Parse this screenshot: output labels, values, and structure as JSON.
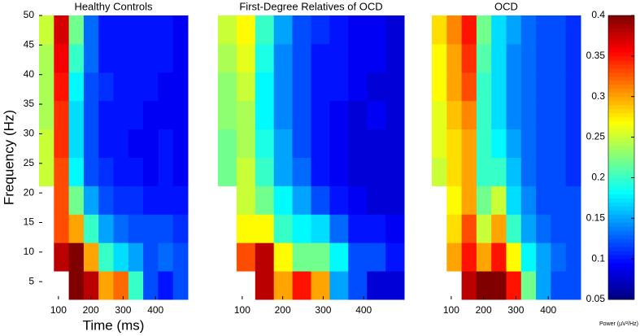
{
  "chart_data": [
    {
      "type": "heatmap",
      "title": "Healthy Controls",
      "xlabel": "Time (ms)",
      "ylabel": "Frequency (Hz)",
      "x": [
        63,
        109,
        155,
        201,
        247,
        293,
        339,
        385,
        431,
        477
      ],
      "y": [
        4.4,
        9.2,
        14,
        18.8,
        23.6,
        28.4,
        33.2,
        38,
        42.8,
        47.6
      ],
      "values": [
        [
          null,
          null,
          0.4,
          0.38,
          0.3,
          0.32,
          0.2,
          0.12,
          0.1,
          0.12
        ],
        [
          null,
          0.38,
          0.4,
          0.3,
          0.2,
          0.17,
          0.15,
          0.12,
          0.13,
          0.12
        ],
        [
          null,
          0.33,
          0.3,
          0.2,
          0.15,
          0.13,
          0.12,
          0.12,
          0.12,
          0.11
        ],
        [
          null,
          0.33,
          0.22,
          0.15,
          0.12,
          0.11,
          0.11,
          0.1,
          0.1,
          0.1
        ],
        [
          0.25,
          0.33,
          0.18,
          0.12,
          0.11,
          0.1,
          0.1,
          0.09,
          0.1,
          0.09
        ],
        [
          0.25,
          0.34,
          0.17,
          0.12,
          0.1,
          0.1,
          0.09,
          0.09,
          0.1,
          0.09
        ],
        [
          0.24,
          0.34,
          0.17,
          0.12,
          0.1,
          0.1,
          0.1,
          0.09,
          0.09,
          0.09
        ],
        [
          0.24,
          0.35,
          0.18,
          0.12,
          0.11,
          0.1,
          0.1,
          0.1,
          0.09,
          0.09
        ],
        [
          0.24,
          0.36,
          0.2,
          0.13,
          0.1,
          0.1,
          0.1,
          0.1,
          0.1,
          0.09
        ],
        [
          0.25,
          0.37,
          0.22,
          0.13,
          0.1,
          0.1,
          0.1,
          0.1,
          0.1,
          0.09
        ]
      ],
      "xlim": [
        40,
        500
      ],
      "xticks": [
        100,
        200,
        300,
        400
      ],
      "ylim": [
        2,
        50
      ],
      "yticks": [
        5,
        10,
        15,
        20,
        25,
        30,
        35,
        40,
        45,
        50
      ]
    },
    {
      "type": "heatmap",
      "title": "First-Degree Relatives of OCD",
      "x": [
        63,
        109,
        155,
        201,
        247,
        293,
        339,
        385,
        431,
        477
      ],
      "y": [
        4.4,
        9.2,
        14,
        18.8,
        23.6,
        28.4,
        33.2,
        38,
        42.8,
        47.6
      ],
      "values": [
        [
          null,
          null,
          0.38,
          0.3,
          0.35,
          0.3,
          0.15,
          0.12,
          0.08,
          0.08
        ],
        [
          null,
          0.33,
          0.38,
          0.27,
          0.22,
          0.22,
          0.18,
          0.12,
          0.12,
          0.1
        ],
        [
          null,
          0.27,
          0.27,
          0.2,
          0.18,
          0.17,
          0.13,
          0.1,
          0.1,
          0.09
        ],
        [
          null,
          0.25,
          0.22,
          0.18,
          0.15,
          0.12,
          0.1,
          0.09,
          0.08,
          0.08
        ],
        [
          0.22,
          0.25,
          0.2,
          0.15,
          0.13,
          0.1,
          0.09,
          0.08,
          0.08,
          0.08
        ],
        [
          0.22,
          0.24,
          0.19,
          0.15,
          0.12,
          0.1,
          0.09,
          0.08,
          0.08,
          0.08
        ],
        [
          0.23,
          0.24,
          0.18,
          0.14,
          0.12,
          0.1,
          0.09,
          0.08,
          0.09,
          0.08
        ],
        [
          0.23,
          0.25,
          0.18,
          0.14,
          0.12,
          0.1,
          0.1,
          0.09,
          0.08,
          0.08
        ],
        [
          0.24,
          0.26,
          0.19,
          0.14,
          0.12,
          0.1,
          0.1,
          0.09,
          0.09,
          0.08
        ],
        [
          0.25,
          0.27,
          0.2,
          0.15,
          0.12,
          0.11,
          0.1,
          0.09,
          0.09,
          0.08
        ]
      ],
      "xlim": [
        40,
        500
      ],
      "xticks": [
        100,
        200,
        300,
        400
      ],
      "ylim": [
        2,
        50
      ]
    },
    {
      "type": "heatmap",
      "title": "OCD",
      "x": [
        63,
        109,
        155,
        201,
        247,
        293,
        339,
        385,
        431,
        477
      ],
      "y": [
        4.4,
        9.2,
        14,
        18.8,
        23.6,
        28.4,
        33.2,
        38,
        42.8,
        47.6
      ],
      "values": [
        [
          null,
          null,
          0.38,
          0.4,
          0.4,
          0.35,
          0.22,
          0.15,
          0.12,
          0.12
        ],
        [
          null,
          0.3,
          0.35,
          0.3,
          0.35,
          0.27,
          0.18,
          0.15,
          0.13,
          0.12
        ],
        [
          null,
          0.28,
          0.33,
          0.25,
          0.3,
          0.2,
          0.15,
          0.13,
          0.12,
          0.12
        ],
        [
          null,
          0.27,
          0.3,
          0.22,
          0.25,
          0.17,
          0.14,
          0.12,
          0.12,
          0.12
        ],
        [
          0.25,
          0.28,
          0.3,
          0.2,
          0.2,
          0.16,
          0.13,
          0.12,
          0.12,
          0.11
        ],
        [
          0.26,
          0.28,
          0.3,
          0.2,
          0.18,
          0.15,
          0.13,
          0.12,
          0.12,
          0.11
        ],
        [
          0.26,
          0.29,
          0.31,
          0.2,
          0.17,
          0.14,
          0.13,
          0.12,
          0.12,
          0.11
        ],
        [
          0.27,
          0.3,
          0.33,
          0.2,
          0.17,
          0.14,
          0.13,
          0.12,
          0.12,
          0.11
        ],
        [
          0.27,
          0.3,
          0.34,
          0.21,
          0.17,
          0.14,
          0.13,
          0.12,
          0.12,
          0.11
        ],
        [
          0.28,
          0.31,
          0.35,
          0.22,
          0.17,
          0.15,
          0.13,
          0.12,
          0.12,
          0.11
        ]
      ],
      "xlim": [
        40,
        500
      ],
      "xticks": [
        100,
        200,
        300,
        400
      ],
      "ylim": [
        2,
        50
      ],
      "colorbar": {
        "label": "Power (µV²/Hz)",
        "colormap": "jet",
        "clim": [
          0.05,
          0.4
        ],
        "ticks": [
          0.05,
          0.1,
          0.15,
          0.2,
          0.25,
          0.3,
          0.35,
          0.4
        ]
      }
    }
  ]
}
